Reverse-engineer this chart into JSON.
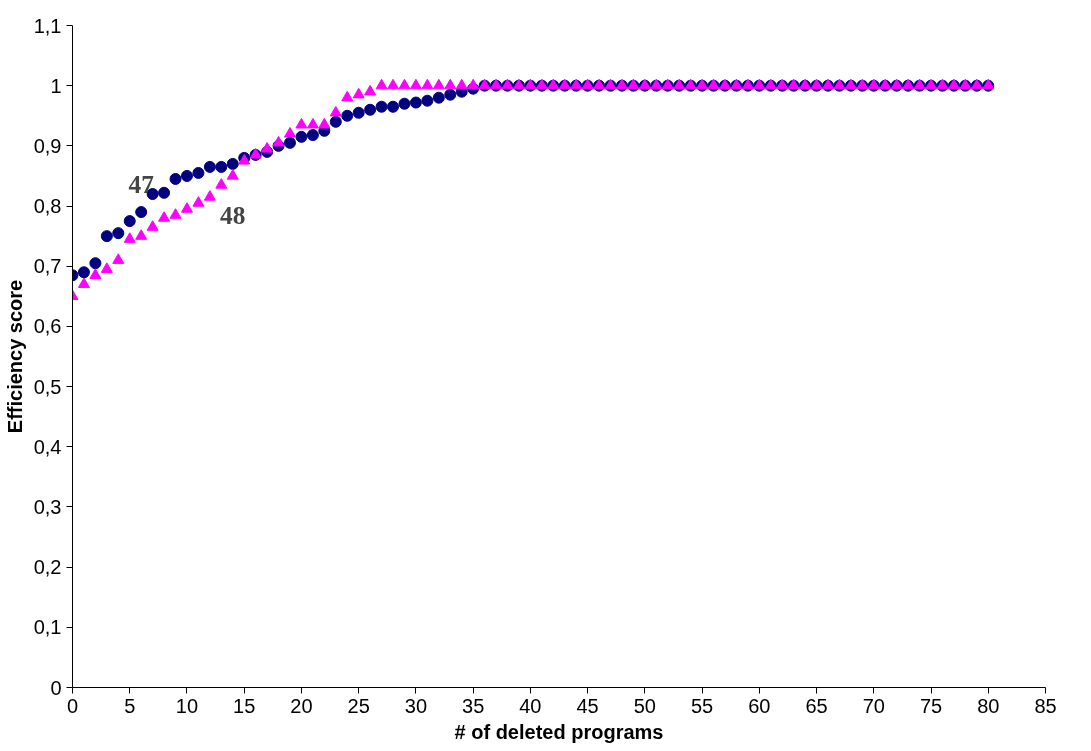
{
  "chart_data": {
    "type": "scatter",
    "xlabel": "# of deleted programs",
    "ylabel": "Efficiency score",
    "xlim": [
      0,
      85
    ],
    "xticks": [
      0,
      5,
      10,
      15,
      20,
      25,
      30,
      35,
      40,
      45,
      50,
      55,
      60,
      65,
      70,
      75,
      80,
      85
    ],
    "ylim": [
      0,
      1.1
    ],
    "yticks": [
      {
        "value": 0,
        "label": "0"
      },
      {
        "value": 0.1,
        "label": "0,1"
      },
      {
        "value": 0.2,
        "label": "0,2"
      },
      {
        "value": 0.3,
        "label": "0,3"
      },
      {
        "value": 0.4,
        "label": "0,4"
      },
      {
        "value": 0.5,
        "label": "0,5"
      },
      {
        "value": 0.6,
        "label": "0,6"
      },
      {
        "value": 0.7,
        "label": "0,7"
      },
      {
        "value": 0.8,
        "label": "0,8"
      },
      {
        "value": 0.9,
        "label": "0,9"
      },
      {
        "value": 1,
        "label": "1"
      },
      {
        "value": 1.1,
        "label": "1,1"
      }
    ],
    "grid": false,
    "x": [
      0,
      1,
      2,
      3,
      4,
      5,
      6,
      7,
      8,
      9,
      10,
      11,
      12,
      13,
      14,
      15,
      16,
      17,
      18,
      19,
      20,
      21,
      22,
      23,
      24,
      25,
      26,
      27,
      28,
      29,
      30,
      31,
      32,
      33,
      34,
      35,
      36,
      37,
      38,
      39,
      40,
      41,
      42,
      43,
      44,
      45,
      46,
      47,
      48,
      49,
      50,
      51,
      52,
      53,
      54,
      55,
      56,
      57,
      58,
      59,
      60,
      61,
      62,
      63,
      64,
      65,
      66,
      67,
      68,
      69,
      70,
      71,
      72,
      73,
      74,
      75,
      76,
      77,
      78,
      79,
      80
    ],
    "series": [
      {
        "name": "47",
        "color": "#000080",
        "marker": "circle",
        "values": [
          0.685,
          0.69,
          0.705,
          0.75,
          0.755,
          0.775,
          0.79,
          0.82,
          0.822,
          0.845,
          0.85,
          0.855,
          0.865,
          0.865,
          0.87,
          0.88,
          0.885,
          0.89,
          0.9,
          0.905,
          0.915,
          0.918,
          0.925,
          0.94,
          0.95,
          0.955,
          0.96,
          0.965,
          0.965,
          0.97,
          0.972,
          0.975,
          0.98,
          0.985,
          0.99,
          0.995,
          1,
          1,
          1,
          1,
          1,
          1,
          1,
          1,
          1,
          1,
          1,
          1,
          1,
          1,
          1,
          1,
          1,
          1,
          1,
          1,
          1,
          1,
          1,
          1,
          1,
          1,
          1,
          1,
          1,
          1,
          1,
          1,
          1,
          1,
          1,
          1,
          1,
          1,
          1,
          1,
          1,
          1,
          1,
          1,
          1
        ]
      },
      {
        "name": "48",
        "color": "#ff00ff",
        "marker": "triangle",
        "values": [
          0.65,
          0.67,
          0.685,
          0.695,
          0.71,
          0.745,
          0.75,
          0.765,
          0.78,
          0.785,
          0.795,
          0.805,
          0.815,
          0.835,
          0.85,
          0.875,
          0.885,
          0.895,
          0.905,
          0.92,
          0.935,
          0.935,
          0.935,
          0.955,
          0.98,
          0.985,
          0.99,
          1,
          1,
          1,
          1,
          1,
          1,
          1,
          1,
          1,
          1,
          1,
          1,
          1,
          1,
          1,
          1,
          1,
          1,
          1,
          1,
          1,
          1,
          1,
          1,
          1,
          1,
          1,
          1,
          1,
          1,
          1,
          1,
          1,
          1,
          1,
          1,
          1,
          1,
          1,
          1,
          1,
          1,
          1,
          1,
          1,
          1,
          1,
          1,
          1,
          1,
          1,
          1,
          1,
          1
        ]
      }
    ]
  }
}
